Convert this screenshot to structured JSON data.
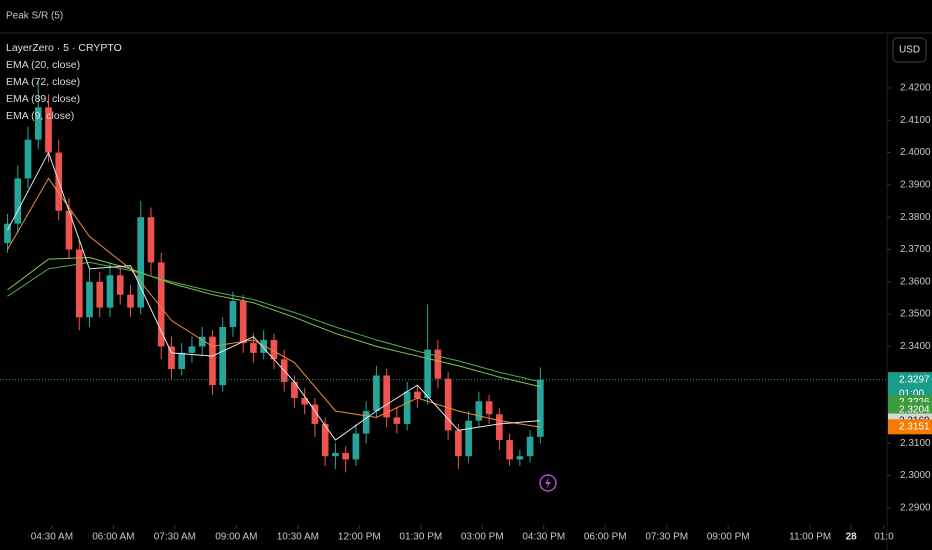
{
  "header": "Peak S/R (5)",
  "chart_data": {
    "type": "candlestick",
    "title": "LayerZero · 5 · CRYPTO",
    "currency": "USD",
    "up_color": "#26a69a",
    "down_color": "#ef5350",
    "xlim": [
      194,
      1491
    ],
    "ylim": [
      2.2847,
      2.4364
    ],
    "xticks": [
      {
        "value": 270,
        "label": "04:30 AM"
      },
      {
        "value": 360,
        "label": "06:00 AM"
      },
      {
        "value": 450,
        "label": "07:30 AM"
      },
      {
        "value": 540,
        "label": "09:00 AM"
      },
      {
        "value": 630,
        "label": "10:30 AM"
      },
      {
        "value": 720,
        "label": "12:00 PM"
      },
      {
        "value": 810,
        "label": "01:30 PM"
      },
      {
        "value": 900,
        "label": "03:00 PM"
      },
      {
        "value": 990,
        "label": "04:30 PM"
      },
      {
        "value": 1080,
        "label": "06:00 PM"
      },
      {
        "value": 1170,
        "label": "07:30 PM"
      },
      {
        "value": 1260,
        "label": "09:00 PM"
      },
      {
        "value": 1380,
        "label": "11:00 PM"
      },
      {
        "value": 1440,
        "label": "28"
      },
      {
        "value": 1488,
        "label": "01:0"
      }
    ],
    "yticks": [
      {
        "value": 2.29,
        "label": "2.2900"
      },
      {
        "value": 2.3,
        "label": "2.3000"
      },
      {
        "value": 2.31,
        "label": "2.3100"
      },
      {
        "value": 2.32,
        "label": "2.3200"
      },
      {
        "value": 2.33,
        "label": "2.3300"
      },
      {
        "value": 2.34,
        "label": "2.3400"
      },
      {
        "value": 2.35,
        "label": "2.3500"
      },
      {
        "value": 2.36,
        "label": "2.3600"
      },
      {
        "value": 2.37,
        "label": "2.3700"
      },
      {
        "value": 2.38,
        "label": "2.3800"
      },
      {
        "value": 2.39,
        "label": "2.3900"
      },
      {
        "value": 2.4,
        "label": "2.4000"
      },
      {
        "value": 2.41,
        "label": "2.4100"
      },
      {
        "value": 2.42,
        "label": "2.4200"
      }
    ],
    "x": [
      205,
      220,
      235,
      250,
      265,
      280,
      295,
      310,
      325,
      340,
      355,
      370,
      385,
      400,
      415,
      430,
      445,
      460,
      475,
      490,
      505,
      520,
      535,
      550,
      565,
      580,
      595,
      610,
      625,
      640,
      655,
      670,
      685,
      700,
      715,
      730,
      745,
      760,
      775,
      790,
      805,
      820,
      835,
      850,
      865,
      880,
      895,
      910,
      925,
      940,
      955,
      970,
      985
    ],
    "open": [
      2.372,
      2.378,
      2.392,
      2.404,
      2.414,
      2.4,
      2.382,
      2.37,
      2.349,
      2.36,
      2.352,
      2.362,
      2.356,
      2.352,
      2.38,
      2.366,
      2.34,
      2.333,
      2.338,
      2.34,
      2.343,
      2.328,
      2.346,
      2.354,
      2.341,
      2.338,
      2.342,
      2.336,
      2.329,
      2.324,
      2.322,
      2.316,
      2.306,
      2.307,
      2.305,
      2.313,
      2.32,
      2.331,
      2.318,
      2.316,
      2.326,
      2.324,
      2.339,
      2.33,
      2.314,
      2.306,
      2.317,
      2.323,
      2.319,
      2.311,
      2.305,
      2.306,
      2.312
    ],
    "high": [
      2.381,
      2.396,
      2.408,
      2.422,
      2.418,
      2.404,
      2.386,
      2.373,
      2.364,
      2.363,
      2.366,
      2.365,
      2.359,
      2.385,
      2.383,
      2.369,
      2.343,
      2.341,
      2.343,
      2.346,
      2.345,
      2.349,
      2.357,
      2.356,
      2.344,
      2.345,
      2.344,
      2.339,
      2.331,
      2.327,
      2.324,
      2.318,
      2.31,
      2.309,
      2.316,
      2.323,
      2.334,
      2.333,
      2.321,
      2.329,
      2.328,
      2.353,
      2.342,
      2.332,
      2.316,
      2.32,
      2.326,
      2.325,
      2.321,
      2.313,
      2.308,
      2.314,
      2.3335
    ],
    "low": [
      2.369,
      2.375,
      2.389,
      2.401,
      2.397,
      2.379,
      2.367,
      2.345,
      2.346,
      2.349,
      2.349,
      2.353,
      2.349,
      2.35,
      2.362,
      2.336,
      2.33,
      2.331,
      2.335,
      2.337,
      2.325,
      2.326,
      2.343,
      2.338,
      2.335,
      2.336,
      2.333,
      2.326,
      2.321,
      2.319,
      2.312,
      2.303,
      2.302,
      2.301,
      2.303,
      2.31,
      2.318,
      2.315,
      2.313,
      2.314,
      2.321,
      2.322,
      2.327,
      2.311,
      2.302,
      2.304,
      2.315,
      2.316,
      2.308,
      2.303,
      2.303,
      2.304,
      2.31
    ],
    "close": [
      2.378,
      2.392,
      2.404,
      2.414,
      2.4,
      2.382,
      2.37,
      2.349,
      2.36,
      2.352,
      2.362,
      2.356,
      2.352,
      2.38,
      2.366,
      2.34,
      2.333,
      2.338,
      2.34,
      2.343,
      2.328,
      2.346,
      2.354,
      2.341,
      2.338,
      2.342,
      2.336,
      2.329,
      2.324,
      2.322,
      2.316,
      2.306,
      2.307,
      2.305,
      2.313,
      2.32,
      2.331,
      2.318,
      2.316,
      2.326,
      2.324,
      2.339,
      2.33,
      2.314,
      2.306,
      2.317,
      2.323,
      2.319,
      2.311,
      2.305,
      2.306,
      2.312,
      2.3297
    ],
    "series": [
      {
        "name": "EMA (20, close)",
        "color": "#f28c38",
        "x": [
          205,
          265,
          325,
          385,
          445,
          505,
          565,
          625,
          685,
          745,
          805,
          865,
          925,
          985
        ],
        "values": [
          2.37,
          2.392,
          2.374,
          2.364,
          2.348,
          2.34,
          2.342,
          2.335,
          2.32,
          2.318,
          2.324,
          2.32,
          2.317,
          2.315
        ]
      },
      {
        "name": "EMA (72, close)",
        "color": "#8bc34a",
        "x": [
          205,
          265,
          325,
          385,
          445,
          505,
          565,
          625,
          685,
          745,
          805,
          865,
          925,
          985
        ],
        "values": [
          2.3575,
          2.367,
          2.3675,
          2.364,
          2.3595,
          2.356,
          2.3535,
          2.349,
          2.344,
          2.34,
          2.337,
          2.334,
          2.3305,
          2.3275
        ]
      },
      {
        "name": "EMA (89, close)",
        "color": "#4caf50",
        "x": [
          205,
          265,
          325,
          385,
          445,
          505,
          565,
          625,
          685,
          745,
          805,
          865,
          925,
          985
        ],
        "values": [
          2.3555,
          2.364,
          2.366,
          2.3635,
          2.36,
          2.357,
          2.3545,
          2.3505,
          2.346,
          2.342,
          2.3385,
          2.3355,
          2.332,
          2.329
        ]
      },
      {
        "name": "EMA (9, close)",
        "color": "#e8e8e8",
        "x": [
          205,
          265,
          325,
          385,
          445,
          505,
          565,
          625,
          685,
          745,
          805,
          865,
          925,
          985
        ],
        "values": [
          2.376,
          2.4,
          2.364,
          2.365,
          2.338,
          2.337,
          2.343,
          2.329,
          2.311,
          2.32,
          2.328,
          2.314,
          2.316,
          2.317
        ]
      }
    ],
    "price_labels": [
      {
        "value": 2.3297,
        "color": "#1a9c8a",
        "countdown": "01:00"
      },
      {
        "value": 2.3226,
        "color": "#3d9a3d"
      },
      {
        "value": 2.3204,
        "color": "#3d9a3d"
      },
      {
        "value": 2.3169,
        "color": "#d6d6d6"
      },
      {
        "value": 2.3151,
        "color": "#f57c00"
      }
    ]
  }
}
